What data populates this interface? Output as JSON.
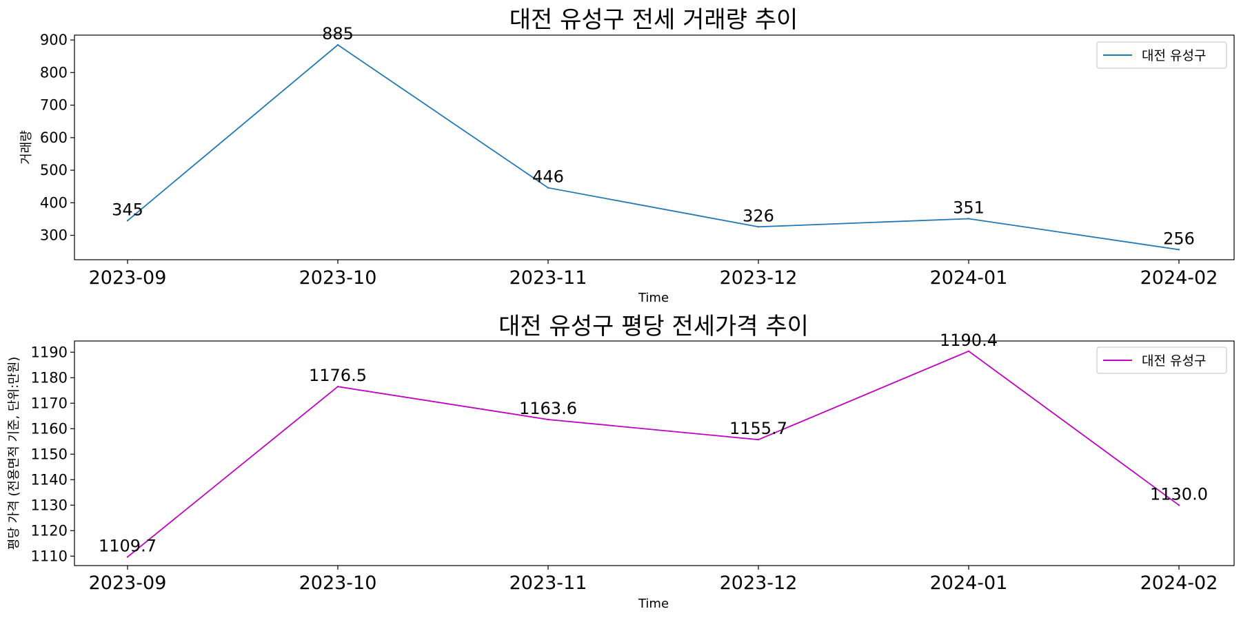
{
  "chart_data": [
    {
      "type": "line",
      "title": "대전 유성구 전세 거래량 추이",
      "xlabel": "Time",
      "ylabel": "거래량",
      "categories": [
        "2023-09",
        "2023-10",
        "2023-11",
        "2023-12",
        "2024-01",
        "2024-02"
      ],
      "series": [
        {
          "name": "대전 유성구",
          "color": "#1f77b4",
          "values": [
            345,
            885,
            446,
            326,
            351,
            256
          ]
        }
      ],
      "data_labels": [
        "345",
        "885",
        "446",
        "326",
        "351",
        "256"
      ],
      "yticks": [
        "300",
        "400",
        "500",
        "600",
        "700",
        "800",
        "900"
      ],
      "ylim": [
        225,
        915
      ],
      "grid": false,
      "legend_position": "top-right"
    },
    {
      "type": "line",
      "title": "대전 유성구 평당 전세가격 추이",
      "xlabel": "Time",
      "ylabel": "평당 가격 (전용면적 기준, 단위:만원)",
      "categories": [
        "2023-09",
        "2023-10",
        "2023-11",
        "2023-12",
        "2024-01",
        "2024-02"
      ],
      "series": [
        {
          "name": "대전 유성구",
          "color": "#bf00bf",
          "values": [
            1109.7,
            1176.5,
            1163.6,
            1155.7,
            1190.4,
            1130.0
          ]
        }
      ],
      "data_labels": [
        "1109.7",
        "1176.5",
        "1163.6",
        "1155.7",
        "1190.4",
        "1130.0"
      ],
      "yticks": [
        "1110",
        "1120",
        "1130",
        "1140",
        "1150",
        "1160",
        "1170",
        "1180",
        "1190"
      ],
      "ylim": [
        1106.3,
        1194.4
      ],
      "grid": false,
      "legend_position": "top-right"
    }
  ]
}
